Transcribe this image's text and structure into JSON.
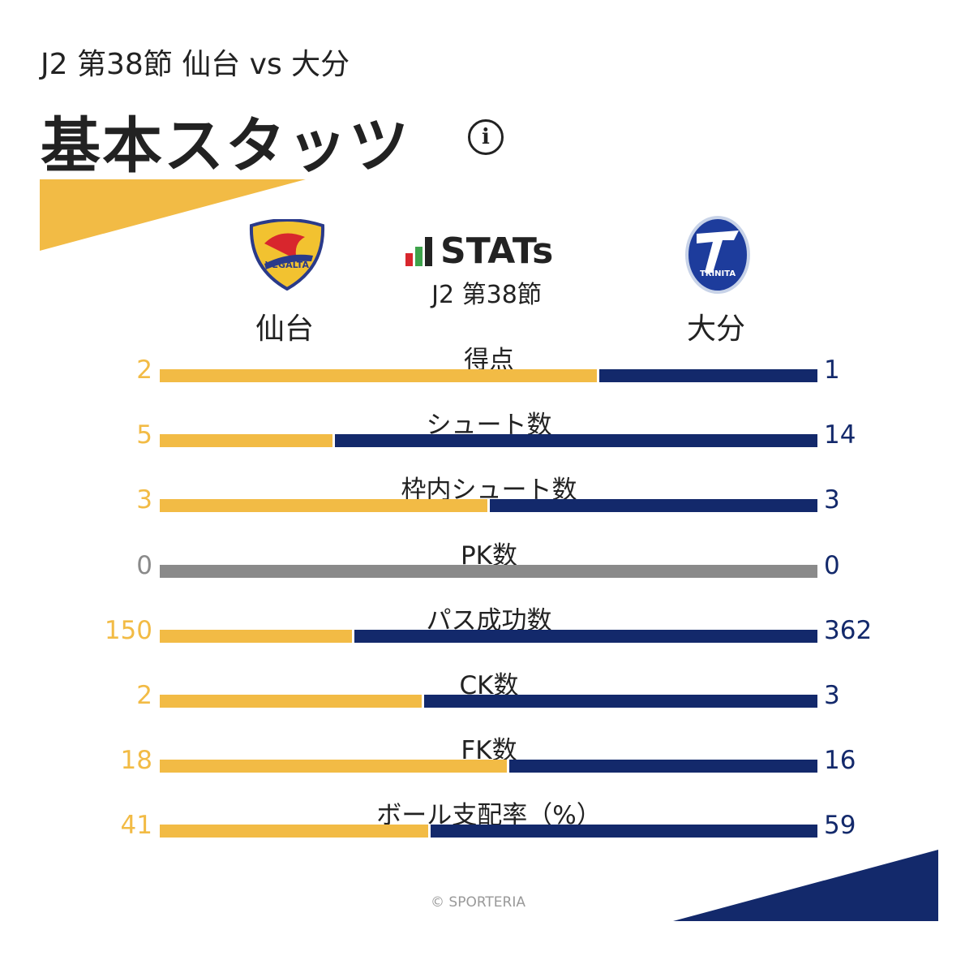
{
  "header": {
    "subtitle": "J2 第38節 仙台 vs 大分",
    "title": "基本スタッツ",
    "info_icon": "i"
  },
  "brand": {
    "name": "STATs",
    "round": "J2 第38節"
  },
  "teams": {
    "home": "仙台",
    "away": "大分",
    "home_logo_text": "VEGALTA",
    "away_logo_text": "TRINITA"
  },
  "colors": {
    "home": "#F2BB45",
    "away": "#13296B",
    "neutral": "#8A8A8A"
  },
  "chart_data": {
    "type": "bar",
    "orientation": "horizontal-stacked-comparison",
    "categories": [
      "得点",
      "シュート数",
      "枠内シュート数",
      "PK数",
      "パス成功数",
      "CK数",
      "FK数",
      "ボール支配率（%）"
    ],
    "series": [
      {
        "name": "仙台",
        "values": [
          2,
          5,
          3,
          0,
          150,
          2,
          18,
          41
        ]
      },
      {
        "name": "大分",
        "values": [
          1,
          14,
          3,
          0,
          362,
          3,
          16,
          59
        ]
      }
    ]
  },
  "footer": {
    "copyright": "© SPORTERIA"
  }
}
